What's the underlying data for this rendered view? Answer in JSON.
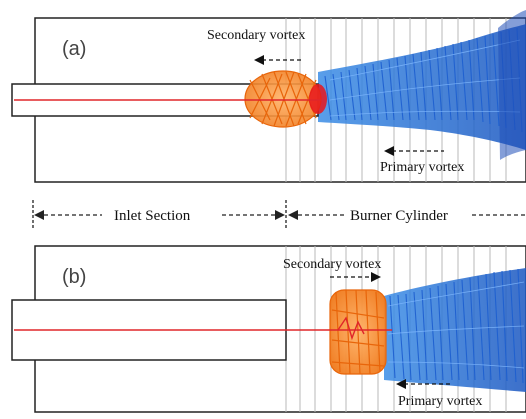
{
  "panels": [
    {
      "letter": "(a)",
      "secondary_label": "Secondary vortex",
      "primary_label": "Primary vortex"
    },
    {
      "letter": "(b)",
      "secondary_label": "Secondary vortex",
      "primary_label": "Primary vortex"
    }
  ],
  "sections": {
    "inlet": "Inlet Section",
    "burner": "Burner Cylinder"
  },
  "colors": {
    "secondary_vortex": "#f07a1c",
    "primary_vortex": "#2a73d8",
    "axis_line": "#e0262a",
    "outline": "#222222",
    "grid": "#b9b9b9"
  }
}
